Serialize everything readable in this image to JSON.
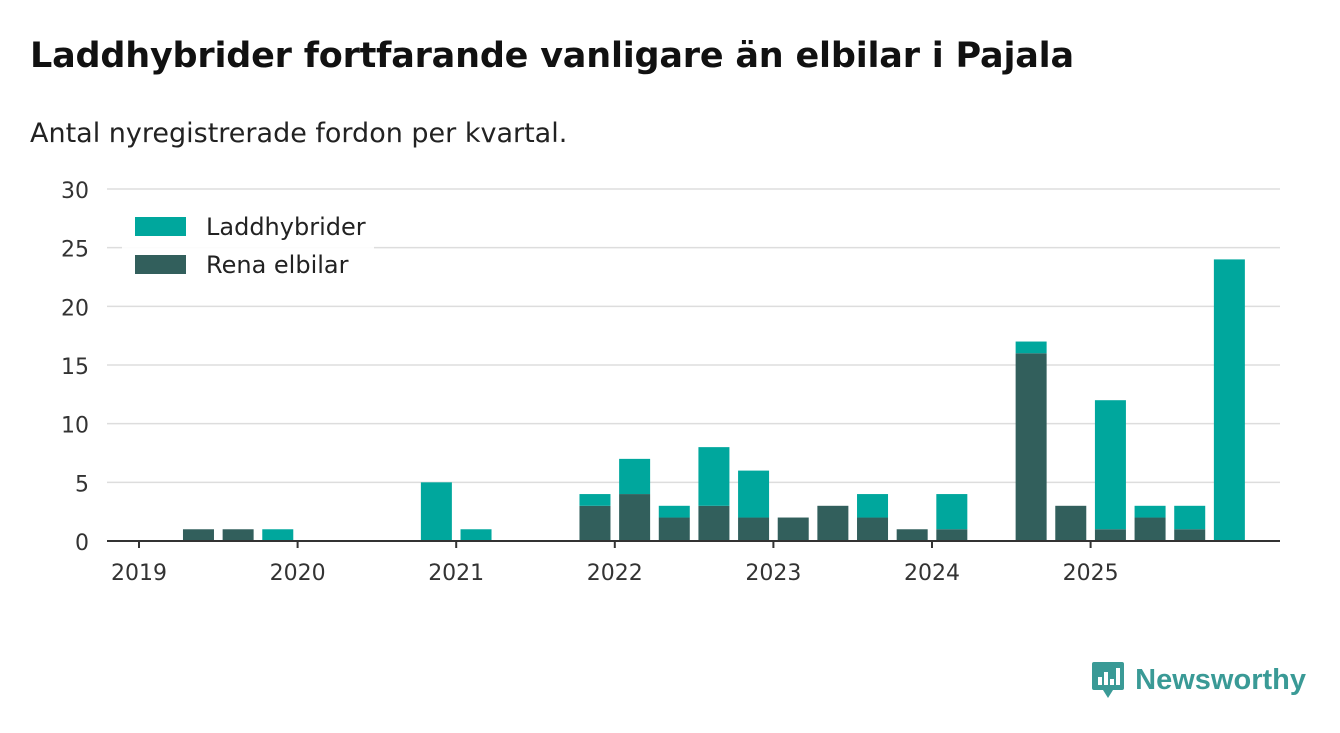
{
  "title": "Laddhybrider fortfarande vanligare än elbilar i Pajala",
  "subtitle": "Antal nyregistrerade fordon per kvartal.",
  "brand": {
    "name": "Newsworthy",
    "icon": "bar-chart-logo-icon"
  },
  "colors": {
    "laddhybrider": "#00a79d",
    "rena_elbilar": "#325f5c",
    "grid": "#dddddd",
    "axis": "#333333",
    "brand": "#3a9a96"
  },
  "chart_data": {
    "type": "bar",
    "stacked": true,
    "grid": true,
    "legend_position": "top-left",
    "ylim": [
      0,
      30
    ],
    "yticks": [
      0,
      5,
      10,
      15,
      20,
      25,
      30
    ],
    "xtick_labels": [
      "2019",
      "2020",
      "2021",
      "2022",
      "2023",
      "2024",
      "2025"
    ],
    "categories": [
      "2019 Q1",
      "2019 Q2",
      "2019 Q3",
      "2019 Q4",
      "2020 Q1",
      "2020 Q2",
      "2020 Q3",
      "2020 Q4",
      "2021 Q1",
      "2021 Q2",
      "2021 Q3",
      "2021 Q4",
      "2022 Q1",
      "2022 Q2",
      "2022 Q3",
      "2022 Q4",
      "2023 Q1",
      "2023 Q2",
      "2023 Q3",
      "2023 Q4",
      "2024 Q1",
      "2024 Q2",
      "2024 Q3",
      "2024 Q4",
      "2025 Q1",
      "2025 Q2",
      "2025 Q3",
      "2025 Q4"
    ],
    "series": [
      {
        "name": "Rena elbilar",
        "color": "#325f5c",
        "values": [
          0,
          1,
          1,
          0,
          0,
          0,
          0,
          0,
          0,
          0,
          0,
          3,
          4,
          2,
          3,
          2,
          2,
          3,
          2,
          1,
          1,
          0,
          16,
          3,
          1,
          2,
          1,
          0
        ]
      },
      {
        "name": "Laddhybrider",
        "color": "#00a79d",
        "values": [
          0,
          0,
          0,
          1,
          0,
          0,
          0,
          5,
          1,
          0,
          0,
          1,
          3,
          1,
          5,
          4,
          0,
          0,
          2,
          0,
          3,
          0,
          1,
          0,
          11,
          1,
          2,
          24
        ]
      }
    ],
    "legend": [
      "Laddhybrider",
      "Rena elbilar"
    ]
  }
}
